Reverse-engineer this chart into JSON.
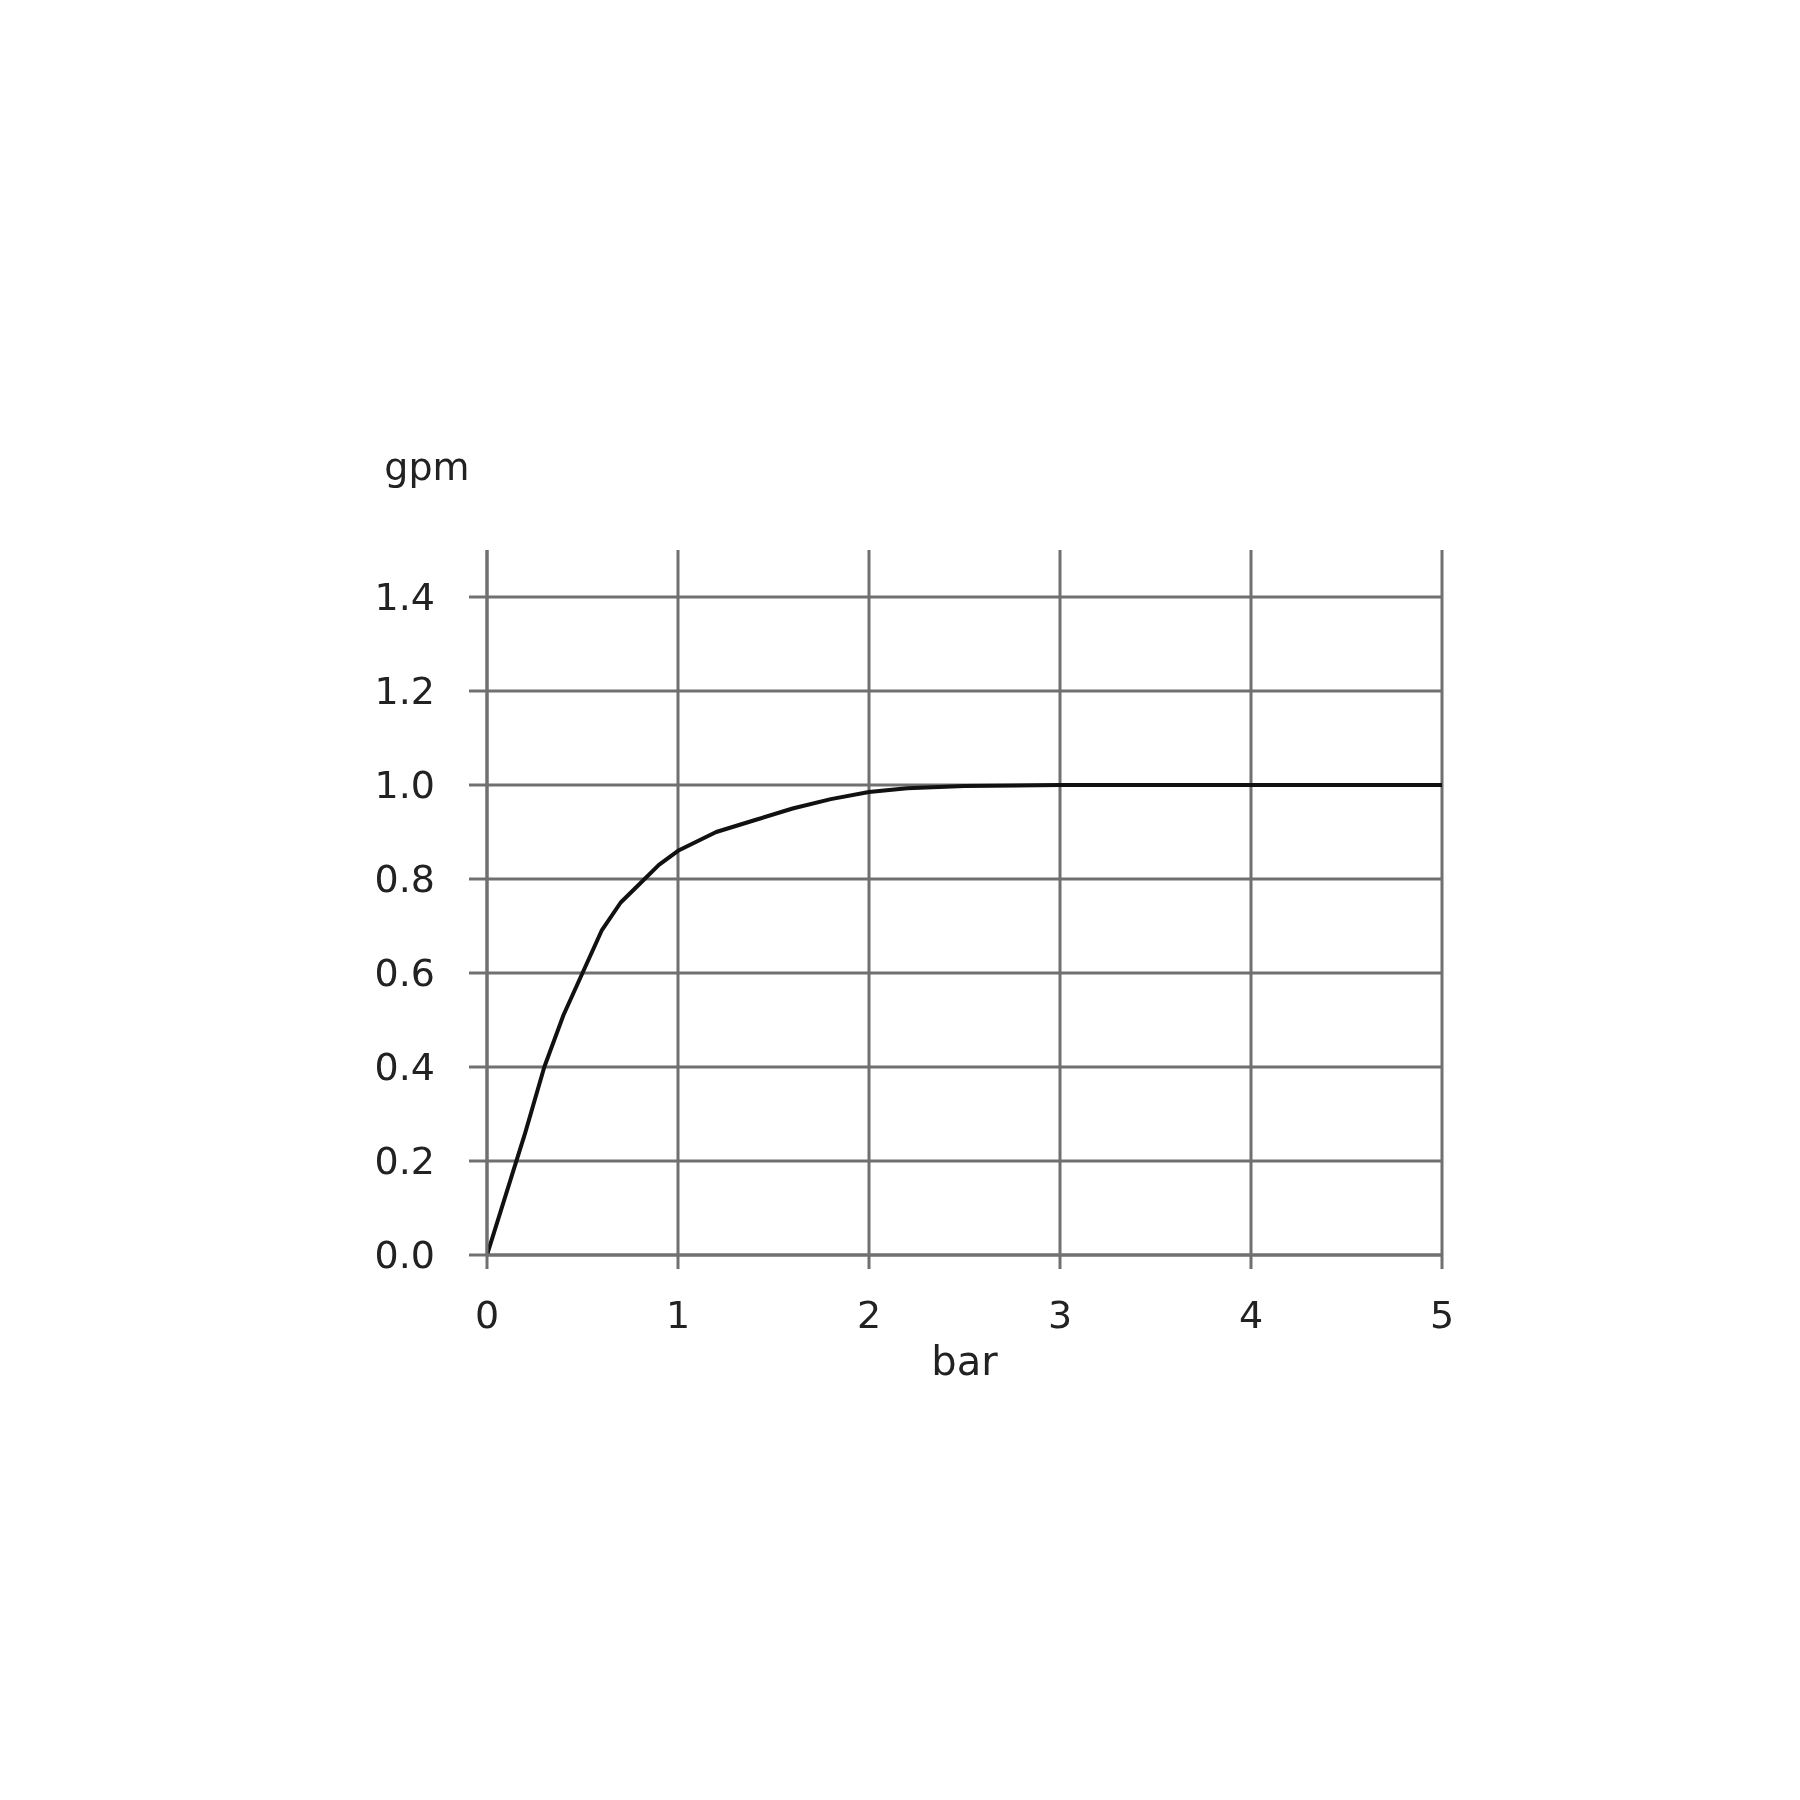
{
  "chart_data": {
    "type": "line",
    "xlabel": "bar",
    "ylabel": "gpm",
    "x": [
      0,
      0.1,
      0.2,
      0.3,
      0.4,
      0.5,
      0.6,
      0.7,
      0.8,
      0.9,
      1.0,
      1.2,
      1.4,
      1.6,
      1.8,
      2.0,
      2.2,
      2.5,
      3,
      4,
      5
    ],
    "series": [
      {
        "color": "#111111",
        "values": [
          0,
          0.13,
          0.26,
          0.4,
          0.51,
          0.6,
          0.69,
          0.75,
          0.79,
          0.83,
          0.86,
          0.9,
          0.925,
          0.95,
          0.97,
          0.985,
          0.993,
          0.998,
          1.0,
          1.0,
          1.0
        ]
      }
    ],
    "xlim": [
      0,
      5
    ],
    "ylim": [
      0,
      1.5
    ],
    "xticks": [
      0,
      1,
      2,
      3,
      4,
      5
    ],
    "yticks": [
      {
        "value": 0,
        "label": "0.0"
      },
      {
        "value": 0.2,
        "label": "0.2"
      },
      {
        "value": 0.4,
        "label": "0.4"
      },
      {
        "value": 0.6,
        "label": "0.6"
      },
      {
        "value": 0.8,
        "label": "0.8"
      },
      {
        "value": 1.0,
        "label": "1.0"
      },
      {
        "value": 1.2,
        "label": "1.2"
      },
      {
        "value": 1.4,
        "label": "1.4"
      }
    ],
    "grid": true,
    "marker": "none",
    "line_style": "solid"
  }
}
